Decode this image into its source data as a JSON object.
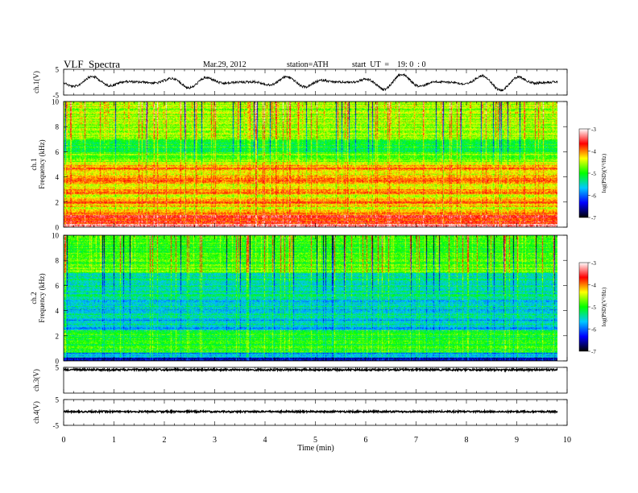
{
  "header": {
    "title": "VLF  Spectra",
    "date": "Mar.29, 2012",
    "station": "station=ATH",
    "start": "start  UT  =    19: 0  : 0"
  },
  "colors": {
    "spectrum_scale": [
      "#000000",
      "#0000ff",
      "#00c8ff",
      "#00ff00",
      "#ffff00",
      "#ff0000",
      "#ffffff"
    ]
  },
  "chart_data": {
    "type": "heatmap",
    "x_axis": {
      "label": "Time  (min)",
      "range": [
        0,
        10
      ],
      "ticks": [
        "0",
        "1",
        "2",
        "3",
        "4",
        "5",
        "6",
        "7",
        "8",
        "9",
        "10"
      ]
    },
    "panels": [
      {
        "id": "ch1-wave",
        "type": "line",
        "ylabel": "ch.1(V)",
        "ylim": [
          -5,
          5
        ],
        "yticks": [
          "5",
          "-5"
        ]
      },
      {
        "id": "ch1-spec",
        "type": "heatmap",
        "ylabel": "ch.1\nFrequency  (kHz)",
        "ylim": [
          0,
          10
        ],
        "yticks": [
          "0",
          "2",
          "4",
          "6",
          "8",
          "10"
        ],
        "colorbar": {
          "label": "log(PSD)(V²/Hz)",
          "range": [
            -7,
            -3
          ],
          "ticks": [
            "-3",
            "-4",
            "-5",
            "-6",
            "-7"
          ]
        }
      },
      {
        "id": "ch2-spec",
        "type": "heatmap",
        "ylabel": "ch.2\nFrequency  (kHz)",
        "ylim": [
          0,
          10
        ],
        "yticks": [
          "0",
          "2",
          "4",
          "6",
          "8",
          "10"
        ],
        "colorbar": {
          "label": "log(PSD)(V²/Hz)",
          "range": [
            -7,
            -3
          ],
          "ticks": [
            "-3",
            "-4",
            "-5",
            "-6",
            "-7"
          ]
        }
      },
      {
        "id": "ch3-wave",
        "type": "line",
        "ylabel": "ch.3(V)",
        "ylim": [
          -5,
          5
        ],
        "yticks": [
          "5"
        ]
      },
      {
        "id": "ch4-wave",
        "type": "line",
        "ylabel": "ch.4(V)",
        "ylim": [
          -5,
          5
        ],
        "yticks": [
          "5",
          "-5"
        ]
      }
    ],
    "data_end_min": 9.8
  }
}
